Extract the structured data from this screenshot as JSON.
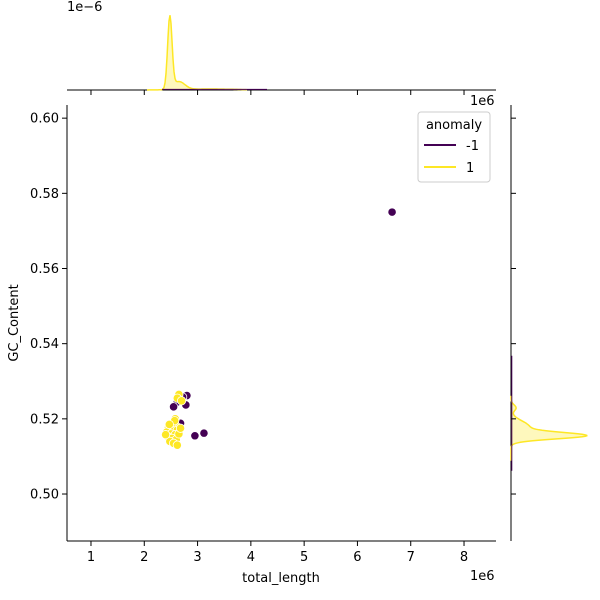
{
  "chart_data": {
    "type": "scatter",
    "xlabel": "total_length",
    "ylabel": "GC_Content",
    "x_offset_label": "1e6",
    "y_offset_label": "",
    "xlim": [
      0.55,
      8.6
    ],
    "ylim": [
      0.4875,
      0.6035
    ],
    "xticks": [
      1,
      2,
      3,
      4,
      5,
      6,
      7,
      8
    ],
    "yticks": [
      0.5,
      0.52,
      0.54,
      0.56,
      0.58,
      0.6
    ],
    "grid": false,
    "legend": {
      "title": "anomaly",
      "placement": "top-right",
      "entries": [
        {
          "label": "-1",
          "color": "#440154"
        },
        {
          "label": "1",
          "color": "#fde725"
        }
      ]
    },
    "series": [
      {
        "name": "-1",
        "color": "#440154",
        "points": [
          [
            6.65,
            0.575
          ],
          [
            2.8,
            0.5262
          ],
          [
            2.72,
            0.5258
          ],
          [
            2.62,
            0.5245
          ],
          [
            2.55,
            0.5232
          ],
          [
            2.78,
            0.5237
          ],
          [
            2.68,
            0.5188
          ],
          [
            2.95,
            0.5155
          ],
          [
            3.12,
            0.5162
          ],
          [
            2.6,
            0.5175
          ]
        ]
      },
      {
        "name": "1",
        "color": "#fde725",
        "points": [
          [
            2.65,
            0.5265
          ],
          [
            2.62,
            0.5255
          ],
          [
            2.7,
            0.5248
          ],
          [
            2.58,
            0.52
          ],
          [
            2.55,
            0.519
          ],
          [
            2.5,
            0.5185
          ],
          [
            2.6,
            0.518
          ],
          [
            2.52,
            0.5178
          ],
          [
            2.45,
            0.5175
          ],
          [
            2.48,
            0.5172
          ],
          [
            2.55,
            0.5168
          ],
          [
            2.62,
            0.517
          ],
          [
            2.42,
            0.5165
          ],
          [
            2.5,
            0.516
          ],
          [
            2.58,
            0.5158
          ],
          [
            2.45,
            0.5152
          ],
          [
            2.52,
            0.5148
          ],
          [
            2.6,
            0.5145
          ],
          [
            2.48,
            0.514
          ],
          [
            2.55,
            0.5135
          ],
          [
            2.62,
            0.513
          ],
          [
            2.65,
            0.516
          ],
          [
            2.4,
            0.5158
          ],
          [
            2.68,
            0.5175
          ],
          [
            2.57,
            0.5195
          ],
          [
            2.47,
            0.5185
          ]
        ]
      }
    ],
    "marginal_top": {
      "type": "area",
      "offset_label": "1e−6",
      "peak_x": 2.48,
      "series": [
        {
          "name": "1",
          "color": "#fde725"
        }
      ]
    },
    "marginal_right": {
      "type": "area",
      "offset_label": "1e6",
      "peak_y": 0.5155,
      "series": [
        {
          "name": "1",
          "color": "#fde725"
        }
      ]
    }
  }
}
